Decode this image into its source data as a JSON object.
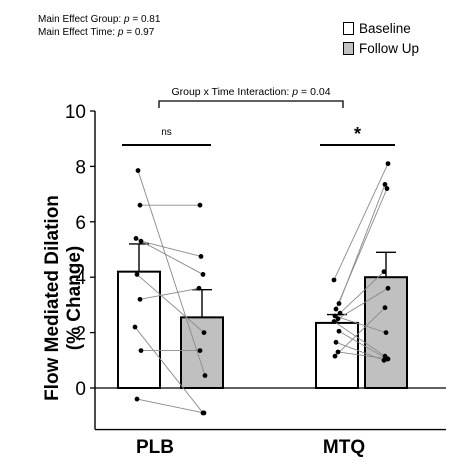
{
  "annotations": {
    "group_effect_label": "Main Effect Group:",
    "group_effect_p": "p",
    "group_effect_value": "= 0.81",
    "time_effect_label": "Main Effect Time:",
    "time_effect_p": "p",
    "time_effect_value": "= 0.97"
  },
  "colors": {
    "baseline": "#ffffff",
    "follow_up": "#c0c0c0",
    "ink": "#000000",
    "lines": "#8a8a8a"
  },
  "chart_data": {
    "type": "bar",
    "categories": [
      "PLB",
      "MTQ"
    ],
    "series": [
      {
        "name": "Baseline",
        "values": [
          4.2,
          2.35
        ],
        "sem": [
          1.0,
          0.3
        ]
      },
      {
        "name": "Follow Up",
        "values": [
          2.55,
          4.0
        ],
        "sem": [
          1.0,
          0.9
        ]
      }
    ],
    "individuals": {
      "PLB": {
        "baseline": [
          7.85,
          6.6,
          5.4,
          5.3,
          4.1,
          3.2,
          2.2,
          1.35,
          -0.4
        ],
        "follow_up": [
          0.45,
          6.6,
          4.1,
          4.75,
          2.0,
          3.6,
          -0.9,
          1.35,
          -0.9
        ]
      },
      "MTQ": {
        "baseline": [
          3.9,
          3.05,
          2.85,
          2.7,
          2.6,
          2.5,
          2.4,
          2.05,
          1.65,
          1.3,
          1.15
        ],
        "follow_up": [
          8.1,
          7.35,
          7.2,
          4.2,
          2.0,
          3.6,
          1.15,
          1.05,
          1.0,
          1.05,
          2.9
        ]
      }
    },
    "ylabel_line1": "Flow Mediated Dilation",
    "ylabel_line2": "(% Change)",
    "ylim": [
      -1.5,
      10
    ],
    "yticks": [
      0,
      2,
      4,
      6,
      8,
      10
    ],
    "interaction_label": "Group x Time Interaction:",
    "interaction_p": "p",
    "interaction_value": "= 0.04",
    "significance": [
      {
        "category": "PLB",
        "label": "ns"
      },
      {
        "category": "MTQ",
        "label": "*"
      }
    ],
    "legend": "top-right",
    "grid": false
  }
}
